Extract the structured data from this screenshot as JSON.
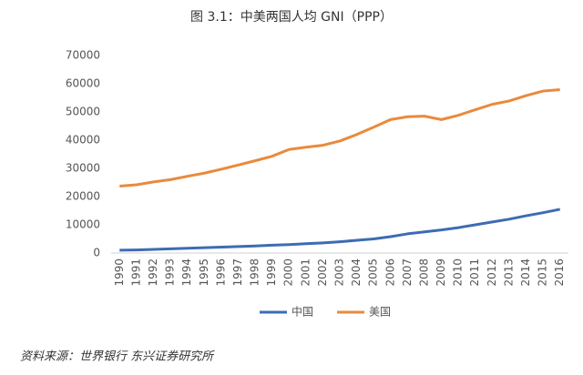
{
  "chart_data": {
    "type": "line",
    "title": "图 3.1：中美两国人均 GNI（PPP）",
    "source": "资料来源：世界银行 东兴证券研究所",
    "categories": [
      "1990",
      "1991",
      "1992",
      "1993",
      "1994",
      "1995",
      "1996",
      "1997",
      "1998",
      "1999",
      "2000",
      "2001",
      "2002",
      "2003",
      "2004",
      "2005",
      "2006",
      "2007",
      "2008",
      "2009",
      "2010",
      "2011",
      "2012",
      "2013",
      "2014",
      "2015",
      "2016"
    ],
    "series": [
      {
        "name": "中国",
        "color": "#3d6cb3",
        "values": [
          1000,
          1100,
          1300,
          1500,
          1700,
          1900,
          2100,
          2300,
          2500,
          2800,
          3000,
          3300,
          3600,
          4000,
          4500,
          5000,
          5800,
          6800,
          7500,
          8200,
          9000,
          10000,
          11000,
          12000,
          13200,
          14300,
          15500
        ]
      },
      {
        "name": "美国",
        "color": "#e98a3c",
        "values": [
          23700,
          24200,
          25200,
          26000,
          27200,
          28300,
          29700,
          31200,
          32700,
          34300,
          36700,
          37500,
          38200,
          39700,
          42000,
          44600,
          47300,
          48300,
          48500,
          47300,
          48800,
          50800,
          52700,
          53900,
          55800,
          57400,
          57900
        ]
      }
    ],
    "ylim": [
      0,
      70000
    ],
    "yticks": [
      0,
      10000,
      20000,
      30000,
      40000,
      50000,
      60000,
      70000
    ],
    "grid": false,
    "legend": "bottom"
  }
}
